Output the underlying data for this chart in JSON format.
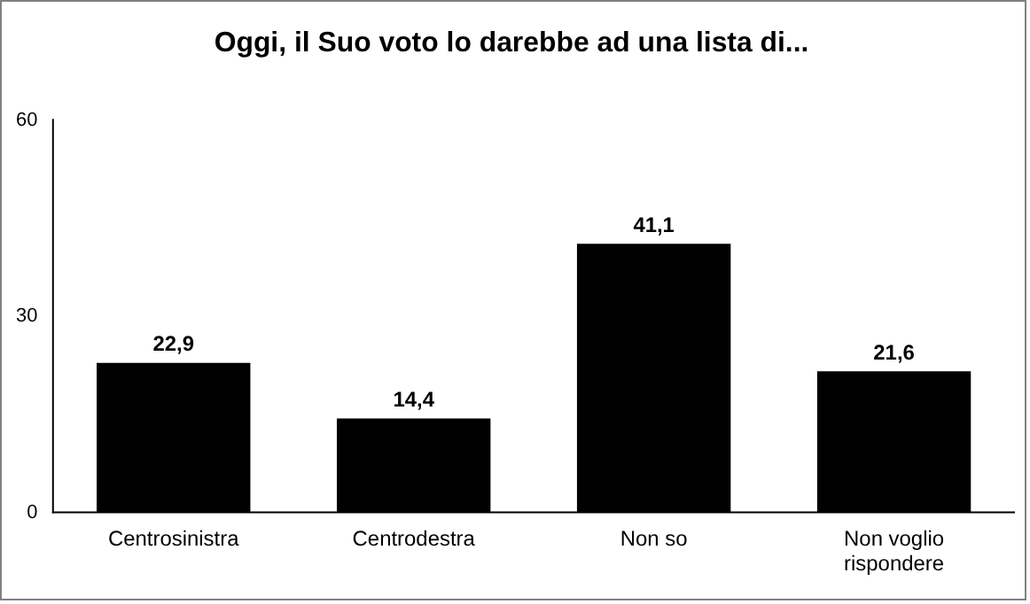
{
  "chart_data": {
    "type": "bar",
    "title": "Oggi, il Suo voto lo darebbe ad una lista di...",
    "categories": [
      "Centrosinistra",
      "Centrodestra",
      "Non so",
      "Non voglio rispondere"
    ],
    "values": [
      22.9,
      14.4,
      41.1,
      21.6
    ],
    "value_labels": [
      "22,9",
      "14,4",
      "41,1",
      "21,6"
    ],
    "color": "#000000",
    "ylim": [
      0,
      60
    ],
    "yticks": [
      0,
      30,
      60
    ],
    "grid": false,
    "legend": false
  }
}
